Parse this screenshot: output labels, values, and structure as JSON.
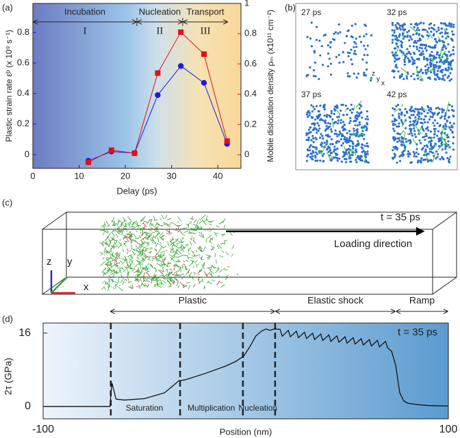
{
  "chart_data": [
    {
      "type": "line",
      "panel_label": "(a)",
      "xlabel": "Delay (ps)",
      "ylabel": "Plastic strain rate ε̇ᵖ (x 10⁹ s⁻¹)",
      "y2label": "Mobile dislocation density ρₘ (x10¹¹ cm⁻²)",
      "x": [
        12,
        17,
        22,
        27,
        32,
        37,
        42
      ],
      "xlim": [
        0,
        45
      ],
      "xticks": [
        0,
        10,
        20,
        30,
        40
      ],
      "ylim": [
        -0.09,
        0.99
      ],
      "yticks": [
        0,
        0.2,
        0.4,
        0.6,
        0.8
      ],
      "y2lim": [
        -0.09,
        1.0
      ],
      "y2ticks": [
        0,
        0.2,
        0.4,
        0.6,
        0.8,
        1
      ],
      "series": [
        {
          "color": "#1a1ae6",
          "marker": "circle",
          "values": [
            -0.04,
            0.02,
            0.01,
            0.39,
            0.58,
            0.47,
            0.07
          ]
        },
        {
          "color": "#e0101a",
          "marker": "square",
          "axis": "y2",
          "values": [
            -0.05,
            0.03,
            0.01,
            0.54,
            0.81,
            0.665,
            0.09
          ]
        }
      ],
      "stages": [
        {
          "name": "Incubation",
          "numeral": "I",
          "span": [
            0,
            22.5
          ]
        },
        {
          "name": "Nucleation",
          "numeral": "II",
          "span": [
            22.5,
            32.4
          ]
        },
        {
          "name": "Transport",
          "numeral": "III",
          "span": [
            32.4,
            42.2
          ]
        }
      ]
    },
    {
      "type": "line",
      "panel_label": "(d)",
      "xlabel": "Position (nm)",
      "ylabel": "2τ  (GPa)",
      "xlim": [
        -100,
        100
      ],
      "xticks": [
        -100,
        100
      ],
      "ylim": [
        -2.7,
        18.2
      ],
      "yticks": [
        0,
        16
      ],
      "color": "#111111",
      "annotation": "t = 35 ps",
      "x": [
        -100,
        -67,
        -66.5,
        -66,
        -64,
        -60,
        -50,
        -40,
        -33,
        -30,
        -20,
        -10,
        -5,
        -1,
        2,
        5,
        8,
        10,
        12,
        14,
        17,
        18,
        21,
        22,
        25,
        26,
        29,
        30,
        33,
        34,
        37,
        38,
        41,
        42,
        45,
        46,
        49,
        50,
        53,
        54,
        57,
        58,
        61,
        62,
        65,
        66,
        69,
        70,
        72,
        74,
        76,
        78,
        80,
        85,
        90,
        100
      ],
      "values": [
        0,
        0,
        3,
        5.1,
        1.6,
        1.4,
        1.7,
        3,
        5.6,
        5.8,
        7.2,
        8.8,
        9.8,
        11,
        13,
        15.4,
        16.5,
        16.9,
        16.6,
        16.9,
        16.8,
        15.3,
        16.6,
        15.2,
        16.4,
        15,
        16.2,
        14.8,
        16,
        14.6,
        15.8,
        14.4,
        15.6,
        14.2,
        15.4,
        14,
        15.2,
        13.8,
        15,
        13.6,
        14.8,
        13.4,
        14.6,
        13.2,
        14.4,
        13,
        14.2,
        12.8,
        12,
        9,
        3,
        1.2,
        0.7,
        0.4,
        0.2,
        0.1
      ],
      "boundaries": [
        -66.6,
        -32.4,
        -1.4,
        14.5
      ],
      "regions": [
        {
          "label": "Plastic",
          "span": [
            -67,
            14.5
          ]
        },
        {
          "label": "Elastic shock",
          "span": [
            14.5,
            74
          ]
        },
        {
          "label": "Ramp",
          "span": [
            74,
            100
          ]
        }
      ],
      "zones": [
        {
          "label": "Saturation",
          "at": -50
        },
        {
          "label": "Multiplication",
          "at": -17
        },
        {
          "label": "Nucleation",
          "at": 6
        }
      ]
    }
  ],
  "panel_b": {
    "label": "(b)",
    "snapshots": [
      "27 ps",
      "32 ps",
      "37 ps",
      "42 ps"
    ],
    "axes": [
      "z",
      "y",
      "x"
    ]
  },
  "panel_c": {
    "label": "(c)",
    "time": "t = 35 ps",
    "direction": "Loading direction",
    "axes": [
      "z",
      "y",
      "x"
    ]
  }
}
